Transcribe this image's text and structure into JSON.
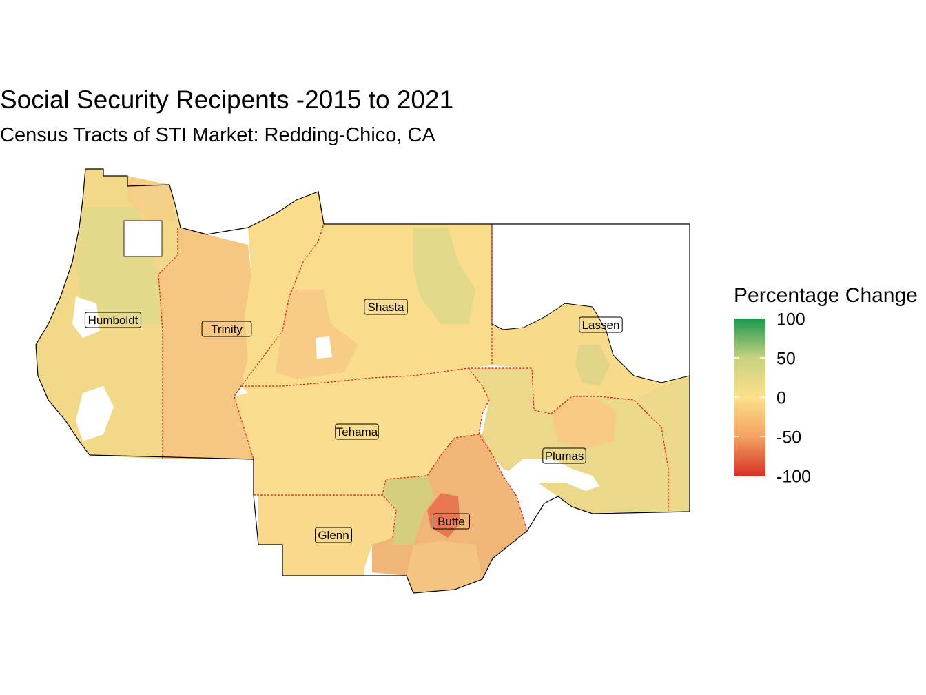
{
  "title": "Social Security Recipents -2015 to 2021",
  "subtitle": "Census Tracts of STI Market: Redding-Chico, CA",
  "legend": {
    "title": "Percentage Change",
    "ticks": [
      "100",
      "50",
      "0",
      "-50",
      "-100"
    ],
    "colors": {
      "high": "#1a9850",
      "mid_high": "#c8d27e",
      "mid": "#fde08c",
      "mid_low": "#f4a261",
      "low": "#d73027"
    }
  },
  "counties": [
    {
      "name": "Humboldt",
      "change": -5
    },
    {
      "name": "Trinity",
      "change": -20
    },
    {
      "name": "Shasta",
      "change": 0
    },
    {
      "name": "Lassen",
      "change": 5
    },
    {
      "name": "Tehama",
      "change": 0
    },
    {
      "name": "Plumas",
      "change": 10
    },
    {
      "name": "Glenn",
      "change": -5
    },
    {
      "name": "Butte",
      "change": -40
    }
  ],
  "colors": {
    "county_border": "#d7191c",
    "outline": "#000000"
  }
}
